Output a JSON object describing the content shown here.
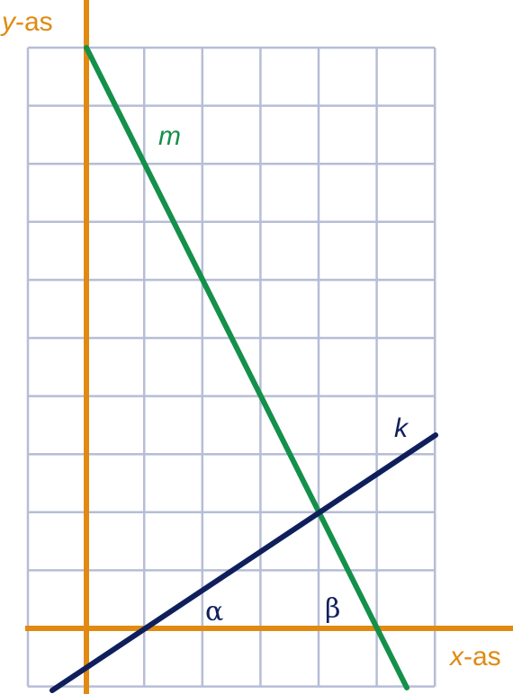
{
  "axes": {
    "y": {
      "variable": "y",
      "suffix": "-as"
    },
    "x": {
      "variable": "x",
      "suffix": "-as"
    }
  },
  "lines": [
    {
      "label": "m"
    },
    {
      "label": "k"
    }
  ],
  "angles": [
    {
      "label": "α"
    },
    {
      "label": "β"
    }
  ]
}
